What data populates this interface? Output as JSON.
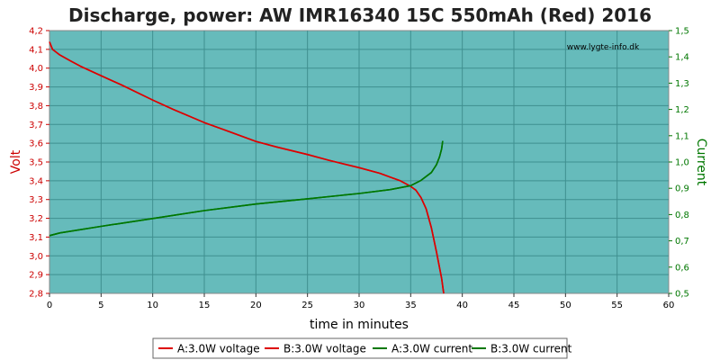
{
  "chart_data": {
    "type": "line",
    "title": "Discharge, power: AW IMR16340 15C 550mAh (Red) 2016",
    "xlabel": "time in minutes",
    "ylabel_left": "Volt",
    "ylabel_right": "Current",
    "watermark": "www.lygte-info.dk",
    "xlim": [
      0,
      60
    ],
    "ylim_left": [
      2.8,
      4.2
    ],
    "ylim_right": [
      0.5,
      1.5
    ],
    "x_ticks": [
      "0",
      "5",
      "10",
      "15",
      "20",
      "25",
      "30",
      "35",
      "40",
      "45",
      "50",
      "55",
      "60"
    ],
    "y_left_ticks": [
      "2,8",
      "2,9",
      "3,0",
      "3,1",
      "3,2",
      "3,3",
      "3,4",
      "3,5",
      "3,6",
      "3,7",
      "3,8",
      "3,9",
      "4,0",
      "4,1",
      "4,2"
    ],
    "y_right_ticks": [
      "0,5",
      "0,6",
      "0,7",
      "0,8",
      "0,9",
      "1,0",
      "1,1",
      "1,2",
      "1,3",
      "1,4",
      "1,5"
    ],
    "grid": true,
    "legend_position": "bottom",
    "colors": {
      "plot_bg": "#66bbbb",
      "grid": "#3f8f8f",
      "voltage": "#dd0000",
      "current": "#007700",
      "left_axis": "#cc0000",
      "right_axis": "#007700"
    },
    "series": [
      {
        "name": "A:3.0W voltage",
        "axis": "left",
        "color": "#dd0000",
        "x": [
          0,
          0.3,
          1,
          2,
          3,
          5,
          7,
          10,
          12,
          15,
          17,
          20,
          22,
          25,
          27,
          30,
          32,
          33,
          34,
          35,
          35.5,
          36,
          36.5,
          37,
          37.5,
          38,
          38.2
        ],
        "y": [
          4.14,
          4.1,
          4.07,
          4.04,
          4.01,
          3.96,
          3.91,
          3.83,
          3.78,
          3.71,
          3.67,
          3.61,
          3.58,
          3.54,
          3.51,
          3.47,
          3.44,
          3.42,
          3.4,
          3.37,
          3.35,
          3.31,
          3.25,
          3.15,
          3.02,
          2.88,
          2.8
        ]
      },
      {
        "name": "B:3.0W voltage",
        "axis": "left",
        "color": "#dd0000",
        "x": [
          0,
          0.3,
          1,
          2,
          3,
          5,
          7,
          10,
          12,
          15,
          17,
          20,
          22,
          25,
          27,
          30,
          32,
          33,
          34,
          35,
          35.5,
          36,
          36.5,
          37,
          37.5,
          38,
          38.2
        ],
        "y": [
          4.14,
          4.1,
          4.07,
          4.04,
          4.01,
          3.96,
          3.91,
          3.83,
          3.78,
          3.71,
          3.67,
          3.61,
          3.58,
          3.54,
          3.51,
          3.47,
          3.44,
          3.42,
          3.4,
          3.37,
          3.35,
          3.31,
          3.25,
          3.15,
          3.02,
          2.88,
          2.8
        ]
      },
      {
        "name": "A:3.0W current",
        "axis": "right",
        "color": "#007700",
        "x": [
          0,
          1,
          5,
          10,
          15,
          20,
          25,
          30,
          33,
          35,
          36,
          37,
          37.5,
          37.8,
          38,
          38.1
        ],
        "y": [
          0.72,
          0.73,
          0.755,
          0.785,
          0.815,
          0.84,
          0.86,
          0.88,
          0.895,
          0.91,
          0.93,
          0.96,
          0.99,
          1.02,
          1.05,
          1.08
        ]
      },
      {
        "name": "B:3.0W current",
        "axis": "right",
        "color": "#007700",
        "x": [
          0,
          1,
          5,
          10,
          15,
          20,
          25,
          30,
          33,
          35,
          36,
          37,
          37.5,
          37.8,
          38,
          38.1
        ],
        "y": [
          0.72,
          0.73,
          0.755,
          0.785,
          0.815,
          0.84,
          0.86,
          0.88,
          0.895,
          0.91,
          0.93,
          0.96,
          0.99,
          1.02,
          1.05,
          1.08
        ]
      }
    ]
  }
}
